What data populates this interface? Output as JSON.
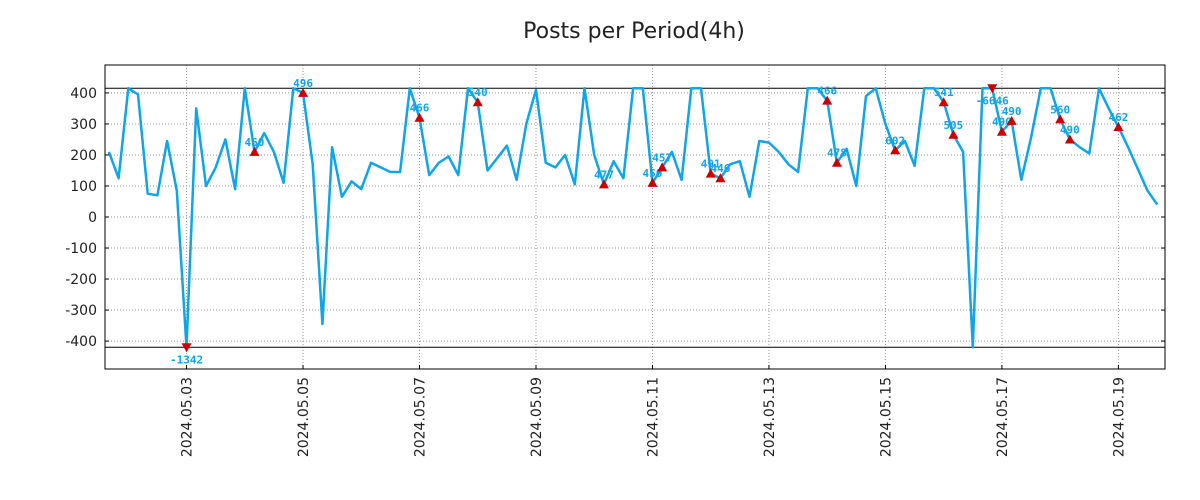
{
  "chart_data": {
    "type": "line",
    "title": "Posts per Period(4h)",
    "xlabel": "",
    "ylabel": "",
    "x_start": "2024-05-01 16:00",
    "step_hours": 4,
    "xlim_days": [
      1.6,
      19.8
    ],
    "ylim": [
      -490,
      490
    ],
    "yticks": [
      -400,
      -300,
      -200,
      -100,
      0,
      100,
      200,
      300,
      400
    ],
    "ytick_labels": [
      "-400",
      "-300",
      "-200",
      "-100",
      "0",
      "100",
      "200",
      "300",
      "400"
    ],
    "xticks_days": [
      3,
      5,
      7,
      9,
      11,
      13,
      15,
      17,
      19
    ],
    "xtick_labels": [
      "2024.05.03",
      "2024.05.05",
      "2024.05.07",
      "2024.05.09",
      "2024.05.11",
      "2024.05.13",
      "2024.05.15",
      "2024.05.17",
      "2024.05.19"
    ],
    "grid": true,
    "upper_limit": 415,
    "lower_limit": -420,
    "series": [
      {
        "name": "Posts",
        "color": "#0ea5e9",
        "values": [
          210,
          125,
          415,
          395,
          75,
          70,
          245,
          85,
          -420,
          350,
          100,
          160,
          250,
          90,
          415,
          210,
          270,
          210,
          110,
          415,
          400,
          170,
          -345,
          225,
          65,
          115,
          90,
          175,
          160,
          145,
          145,
          415,
          320,
          135,
          175,
          195,
          135,
          415,
          370,
          150,
          190,
          230,
          120,
          300,
          410,
          175,
          160,
          200,
          105,
          415,
          200,
          105,
          180,
          125,
          415,
          415,
          110,
          160,
          210,
          120,
          415,
          415,
          140,
          125,
          170,
          180,
          65,
          245,
          240,
          210,
          170,
          145,
          415,
          415,
          375,
          175,
          220,
          100,
          390,
          415,
          300,
          215,
          245,
          165,
          415,
          415,
          370,
          265,
          210,
          -420,
          415,
          415,
          275,
          310,
          120,
          255,
          415,
          415,
          315,
          250,
          225,
          205,
          415,
          350,
          290,
          225,
          155,
          85,
          40
        ]
      }
    ],
    "annotations": [
      {
        "label": "-1342",
        "index": 8,
        "kind": "low"
      },
      {
        "label": "460",
        "index": 15,
        "kind": "high"
      },
      {
        "label": "496",
        "index": 20,
        "kind": "high"
      },
      {
        "label": "466",
        "index": 32,
        "kind": "high"
      },
      {
        "label": "540",
        "index": 38,
        "kind": "high"
      },
      {
        "label": "477",
        "index": 51,
        "kind": "high"
      },
      {
        "label": "450",
        "index": 56,
        "kind": "high"
      },
      {
        "label": "457",
        "index": 57,
        "kind": "high"
      },
      {
        "label": "491",
        "index": 62,
        "kind": "high"
      },
      {
        "label": "446",
        "index": 63,
        "kind": "high"
      },
      {
        "label": "466",
        "index": 74,
        "kind": "high"
      },
      {
        "label": "478",
        "index": 75,
        "kind": "high"
      },
      {
        "label": "602",
        "index": 81,
        "kind": "high"
      },
      {
        "label": "541",
        "index": 86,
        "kind": "high"
      },
      {
        "label": "505",
        "index": 87,
        "kind": "high"
      },
      {
        "label": "-6646",
        "index": 91,
        "kind": "low"
      },
      {
        "label": "490",
        "index": 92,
        "kind": "high"
      },
      {
        "label": "490",
        "index": 93,
        "kind": "high"
      },
      {
        "label": "560",
        "index": 98,
        "kind": "high"
      },
      {
        "label": "490",
        "index": 99,
        "kind": "high"
      },
      {
        "label": "462",
        "index": 104,
        "kind": "high"
      }
    ],
    "colors": {
      "line": "#0ea5e9",
      "marker": "#cc0000",
      "label": "#0ea5e9",
      "grid": "#999999",
      "axis": "#000000"
    }
  }
}
